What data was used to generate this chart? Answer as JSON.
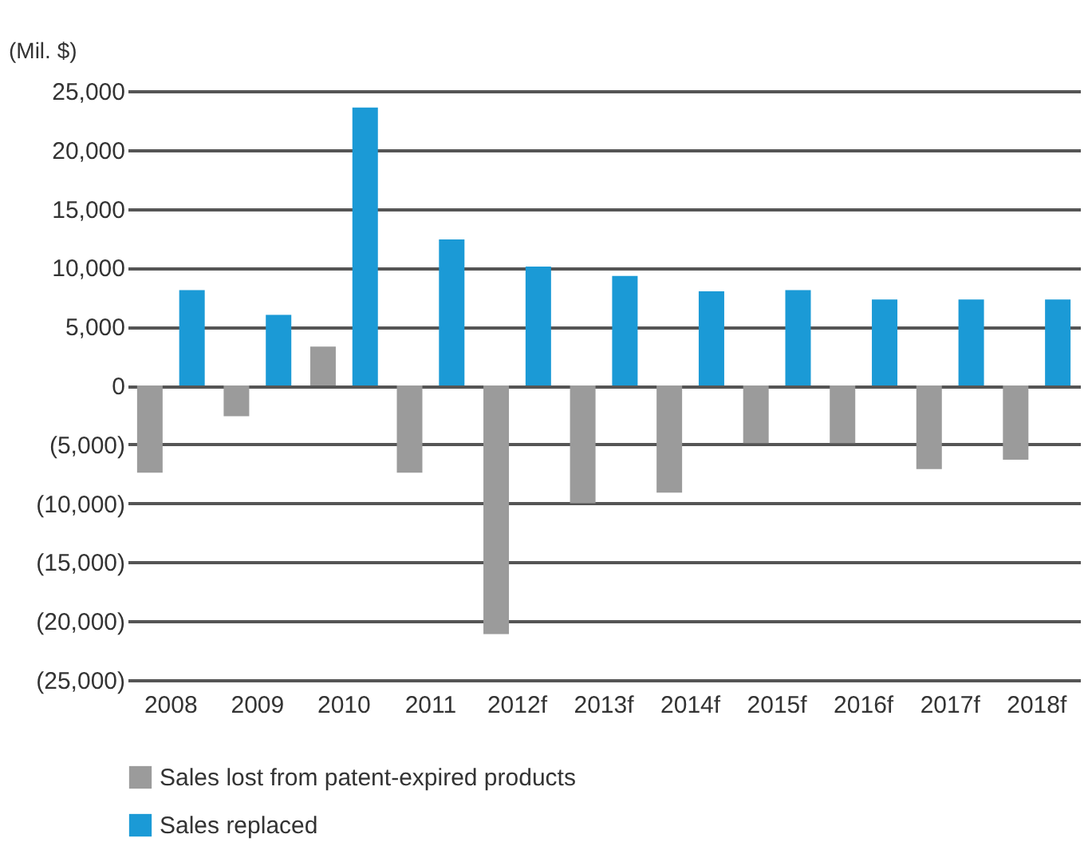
{
  "chart_data": {
    "type": "bar",
    "ylabel": "(Mil. $)",
    "categories": [
      "2008",
      "2009",
      "2010",
      "2011",
      "2012f",
      "2013f",
      "2014f",
      "2015f",
      "2016f",
      "2017f",
      "2018f"
    ],
    "series": [
      {
        "name": "Sales lost from patent-expired products",
        "color": "#9b9b9b",
        "values": [
          -7400,
          -2600,
          3300,
          -7400,
          -21100,
          -10000,
          -9100,
          -4900,
          -4900,
          -7100,
          -6300
        ]
      },
      {
        "name": "Sales replaced",
        "color": "#1b9ad6",
        "values": [
          8100,
          6000,
          23600,
          12400,
          10100,
          9300,
          8000,
          8100,
          7300,
          7300,
          7300
        ]
      }
    ],
    "ylim": [
      -25000,
      25000
    ],
    "yticks": [
      {
        "value": -25000,
        "label": "(25,000)"
      },
      {
        "value": -20000,
        "label": "(20,000)"
      },
      {
        "value": -15000,
        "label": "(15,000)"
      },
      {
        "value": -10000,
        "label": "(10,000)"
      },
      {
        "value": -5000,
        "label": "(5,000)"
      },
      {
        "value": 0,
        "label": "0"
      },
      {
        "value": 5000,
        "label": "5,000"
      },
      {
        "value": 10000,
        "label": "10,000"
      },
      {
        "value": 15000,
        "label": "15,000"
      },
      {
        "value": 20000,
        "label": "20,000"
      },
      {
        "value": 25000,
        "label": "25,000"
      }
    ],
    "grid": "y",
    "legend": "bottom"
  }
}
